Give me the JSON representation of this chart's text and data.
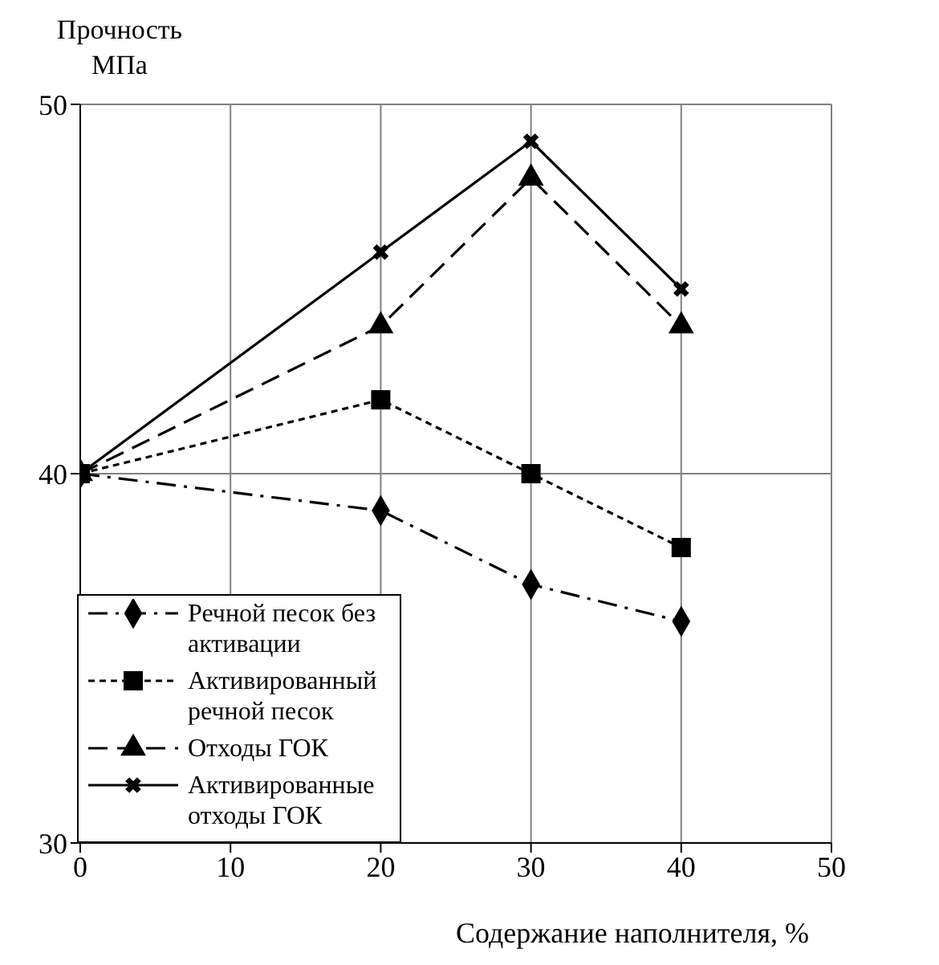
{
  "chart_data": {
    "type": "line",
    "xlabel": "Содержание наполнителя, %",
    "ylabel": "Прочность МПа",
    "x": [
      0,
      20,
      30,
      40
    ],
    "series": [
      {
        "name": "Речной песок без активации",
        "color": "#000000",
        "values": [
          40,
          39,
          37,
          36
        ],
        "marker": "diamond",
        "line_style": "dashdot"
      },
      {
        "name": "Активированный речной песок",
        "color": "#000000",
        "values": [
          40,
          42,
          40,
          38
        ],
        "marker": "square",
        "line_style": "dotted"
      },
      {
        "name": "Отходы ГОК",
        "color": "#000000",
        "values": [
          40,
          44,
          48,
          44
        ],
        "marker": "triangle",
        "line_style": "dashed"
      },
      {
        "name": "Активированные отходы ГОК",
        "color": "#000000",
        "values": [
          40,
          46,
          49,
          45
        ],
        "marker": "cross",
        "line_style": "solid"
      }
    ],
    "xlim": [
      0,
      50
    ],
    "xticks": [
      0,
      10,
      20,
      30,
      40,
      50
    ],
    "ylim": [
      30,
      50
    ],
    "yticks": [
      30,
      40,
      50
    ],
    "grid": true,
    "legend": "bottom left"
  }
}
